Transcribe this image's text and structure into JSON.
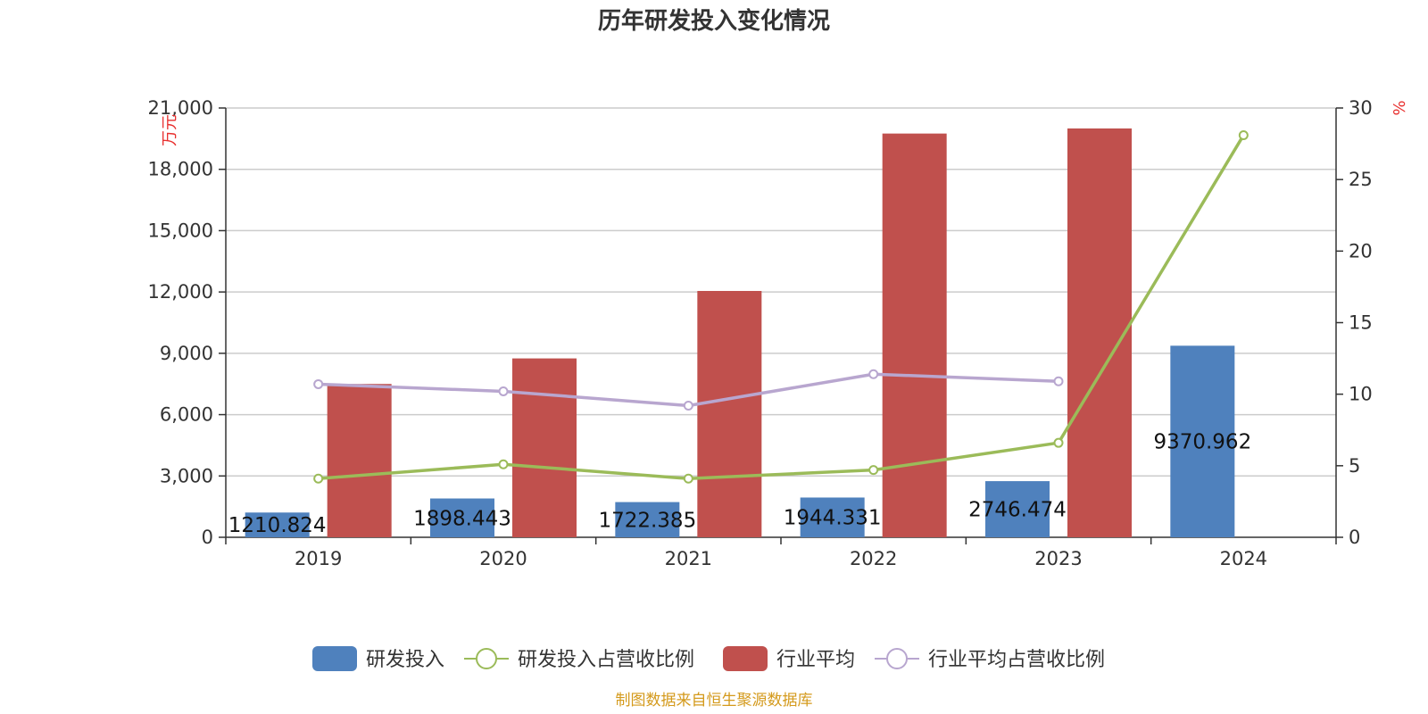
{
  "chart_data": {
    "type": "bar",
    "title": "历年研发投入变化情况",
    "categories": [
      "2019",
      "2020",
      "2021",
      "2022",
      "2023",
      "2024"
    ],
    "y_left": {
      "label": "万元",
      "ylim": [
        0,
        21000
      ],
      "ticks": [
        0,
        3000,
        6000,
        9000,
        12000,
        15000,
        18000,
        21000
      ],
      "tick_labels": [
        "0",
        "3,000",
        "6,000",
        "9,000",
        "12,000",
        "15,000",
        "18,000",
        "21,000"
      ]
    },
    "y_right": {
      "label": "%",
      "ylim": [
        0,
        30
      ],
      "ticks": [
        0,
        5,
        10,
        15,
        20,
        25,
        30
      ],
      "tick_labels": [
        "0",
        "5",
        "10",
        "15",
        "20",
        "25",
        "30"
      ]
    },
    "series": [
      {
        "name": "研发投入",
        "kind": "bar",
        "axis": "left",
        "color": "#4f81bd",
        "values": [
          1210.824,
          1898.443,
          1722.385,
          1944.331,
          2746.474,
          9370.962
        ],
        "labels": [
          "1210.824",
          "1898.443",
          "1722.385",
          "1944.331",
          "2746.474",
          "9370.962"
        ]
      },
      {
        "name": "研发投入占营收比例",
        "kind": "line",
        "axis": "right",
        "color": "#9bbb59",
        "values": [
          4.1,
          5.1,
          4.1,
          4.7,
          6.6,
          28.1
        ]
      },
      {
        "name": "行业平均",
        "kind": "bar",
        "axis": "left",
        "color": "#c0504d",
        "values": [
          7500,
          8750,
          12050,
          19750,
          20000,
          null
        ]
      },
      {
        "name": "行业平均占营收比例",
        "kind": "line",
        "axis": "right",
        "color": "#b8a6cf",
        "values": [
          10.7,
          10.2,
          9.2,
          11.4,
          10.9,
          null
        ]
      }
    ],
    "grid": true,
    "legend_position": "bottom"
  },
  "footer": {
    "source": "制图数据来自恒生聚源数据库"
  }
}
